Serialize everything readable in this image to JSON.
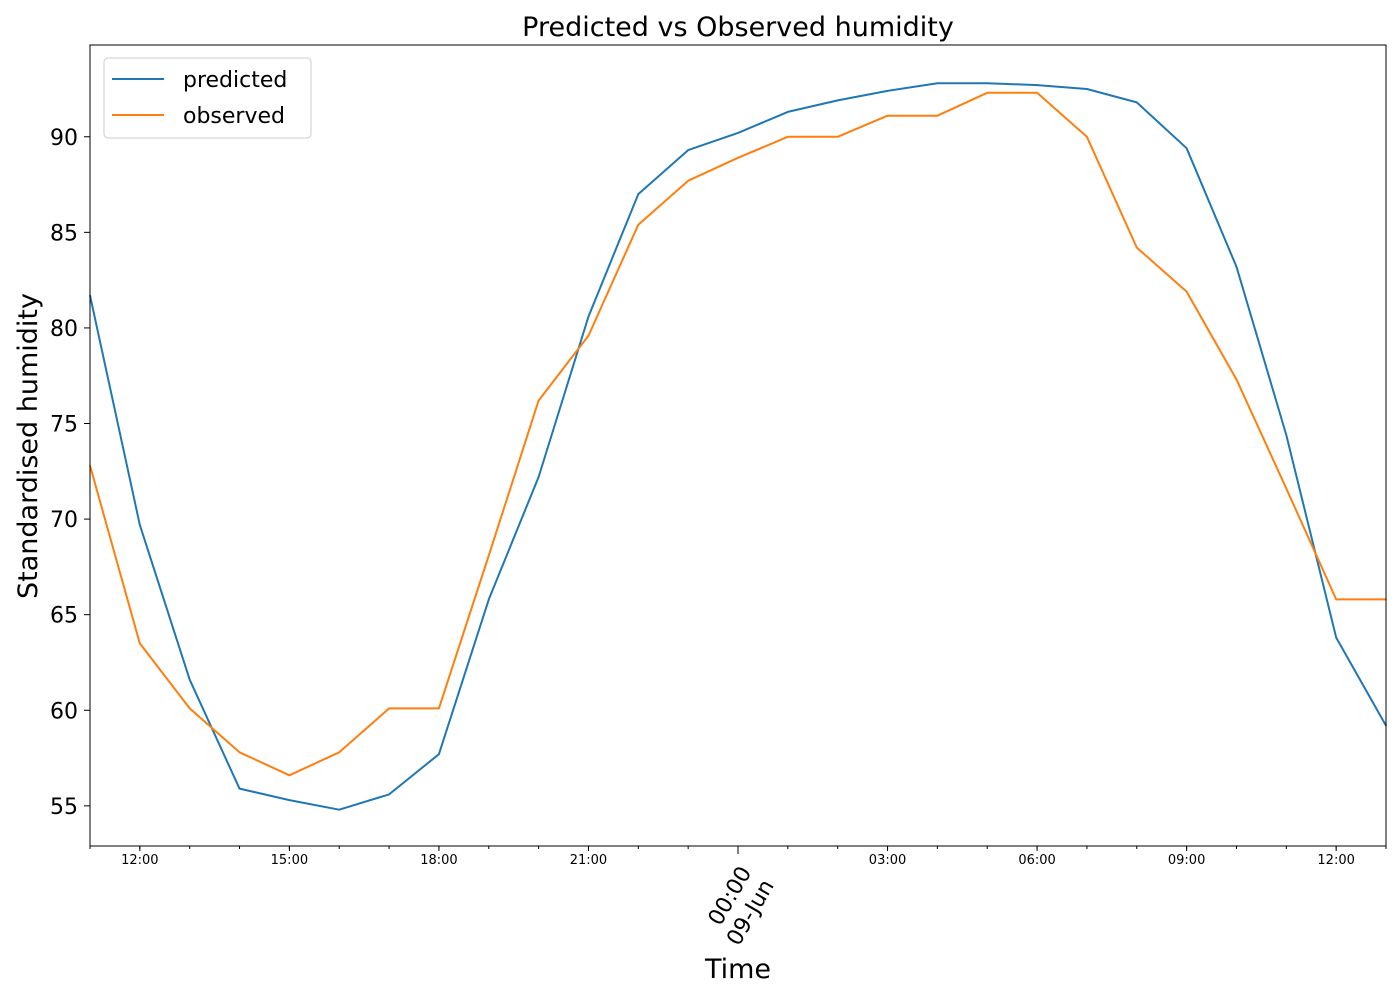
{
  "chart_data": {
    "type": "line",
    "title": "Predicted vs Observed humidity",
    "xlabel": "Time",
    "ylabel": "Standardised humidity",
    "x": [
      "11:00",
      "12:00",
      "13:00",
      "14:00",
      "15:00",
      "16:00",
      "17:00",
      "18:00",
      "19:00",
      "20:00",
      "21:00",
      "22:00",
      "23:00",
      "00:00",
      "01:00",
      "02:00",
      "03:00",
      "04:00",
      "05:00",
      "06:00",
      "07:00",
      "08:00",
      "09:00",
      "10:00",
      "11:00",
      "12:00",
      "13:00"
    ],
    "series": [
      {
        "name": "predicted",
        "color": "#1f77b4",
        "values": [
          81.7,
          69.7,
          61.6,
          55.9,
          55.3,
          54.8,
          55.6,
          57.7,
          65.8,
          72.2,
          80.6,
          87.0,
          89.3,
          90.2,
          91.3,
          91.9,
          92.4,
          92.8,
          92.8,
          92.7,
          92.5,
          91.8,
          89.4,
          83.2,
          74.4,
          63.8,
          59.2
        ]
      },
      {
        "name": "observed",
        "color": "#ff7f0e",
        "values": [
          72.8,
          63.5,
          60.1,
          57.8,
          56.6,
          57.8,
          60.1,
          60.1,
          68.1,
          76.2,
          79.6,
          85.4,
          87.7,
          88.9,
          90.0,
          90.0,
          91.1,
          91.1,
          92.3,
          92.3,
          90.0,
          84.2,
          81.9,
          77.3,
          71.6,
          65.8,
          65.8
        ]
      }
    ],
    "ylim": [
      52.9,
      94.8
    ],
    "yticks": [
      55,
      60,
      65,
      70,
      75,
      80,
      85,
      90
    ],
    "xticks": [
      {
        "label": "12:00",
        "index": 1,
        "major": false
      },
      {
        "label": "15:00",
        "index": 4,
        "major": false
      },
      {
        "label": "18:00",
        "index": 7,
        "major": false
      },
      {
        "label": "21:00",
        "index": 10,
        "major": false
      },
      {
        "label": "00:00\n09-Jun",
        "index": 13,
        "major": true
      },
      {
        "label": "03:00",
        "index": 16,
        "major": false
      },
      {
        "label": "06:00",
        "index": 19,
        "major": false
      },
      {
        "label": "09:00",
        "index": 22,
        "major": false
      },
      {
        "label": "12:00",
        "index": 25,
        "major": false
      }
    ],
    "grid": false,
    "legend_position": "top-left"
  }
}
